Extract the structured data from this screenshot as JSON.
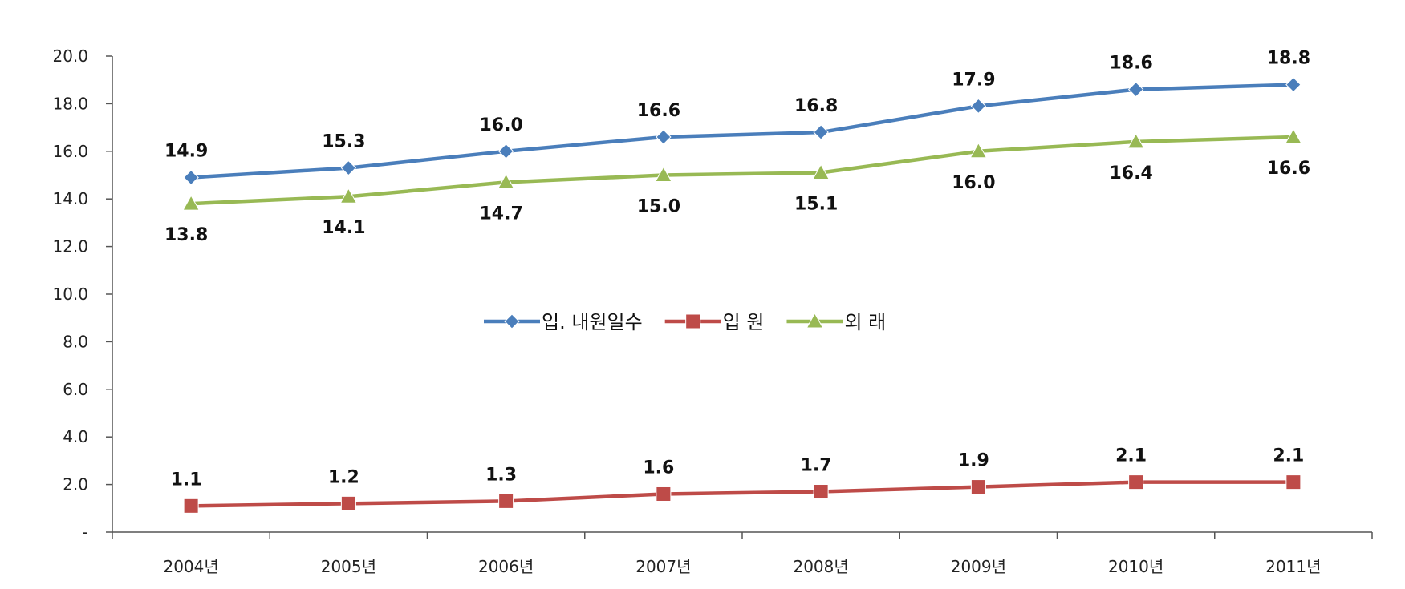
{
  "chart_data": {
    "type": "line",
    "categories": [
      "2004년",
      "2005년",
      "2006년",
      "2007년",
      "2008년",
      "2009년",
      "2010년",
      "2011년"
    ],
    "ylim": [
      0,
      20
    ],
    "yticks": [
      "-",
      "2.0",
      "4.0",
      "6.0",
      "8.0",
      "10.0",
      "12.0",
      "14.0",
      "16.0",
      "18.0",
      "20.0"
    ],
    "grid": false,
    "legend_position": "center",
    "series": [
      {
        "name": "입. 내원일수",
        "color": "#4a7ebb",
        "marker": "diamond",
        "values": [
          14.9,
          15.3,
          16.0,
          16.6,
          16.8,
          17.9,
          18.6,
          18.8
        ],
        "labels": [
          "14.9",
          "15.3",
          "16.0",
          "16.6",
          "16.8",
          "17.9",
          "18.6",
          "18.8"
        ],
        "label_side": "above"
      },
      {
        "name": "입 원",
        "color": "#be4b48",
        "marker": "square",
        "values": [
          1.1,
          1.2,
          1.3,
          1.6,
          1.7,
          1.9,
          2.1,
          2.1
        ],
        "labels": [
          "1.1",
          "1.2",
          "1.3",
          "1.6",
          "1.7",
          "1.9",
          "2.1",
          "2.1"
        ],
        "label_side": "above"
      },
      {
        "name": "외 래",
        "color": "#98b954",
        "marker": "triangle",
        "values": [
          13.8,
          14.1,
          14.7,
          15.0,
          15.1,
          16.0,
          16.4,
          16.6
        ],
        "labels": [
          "13.8",
          "14.1",
          "14.7",
          "15.0",
          "15.1",
          "16.0",
          "16.4",
          "16.6"
        ],
        "label_side": "below"
      }
    ]
  }
}
